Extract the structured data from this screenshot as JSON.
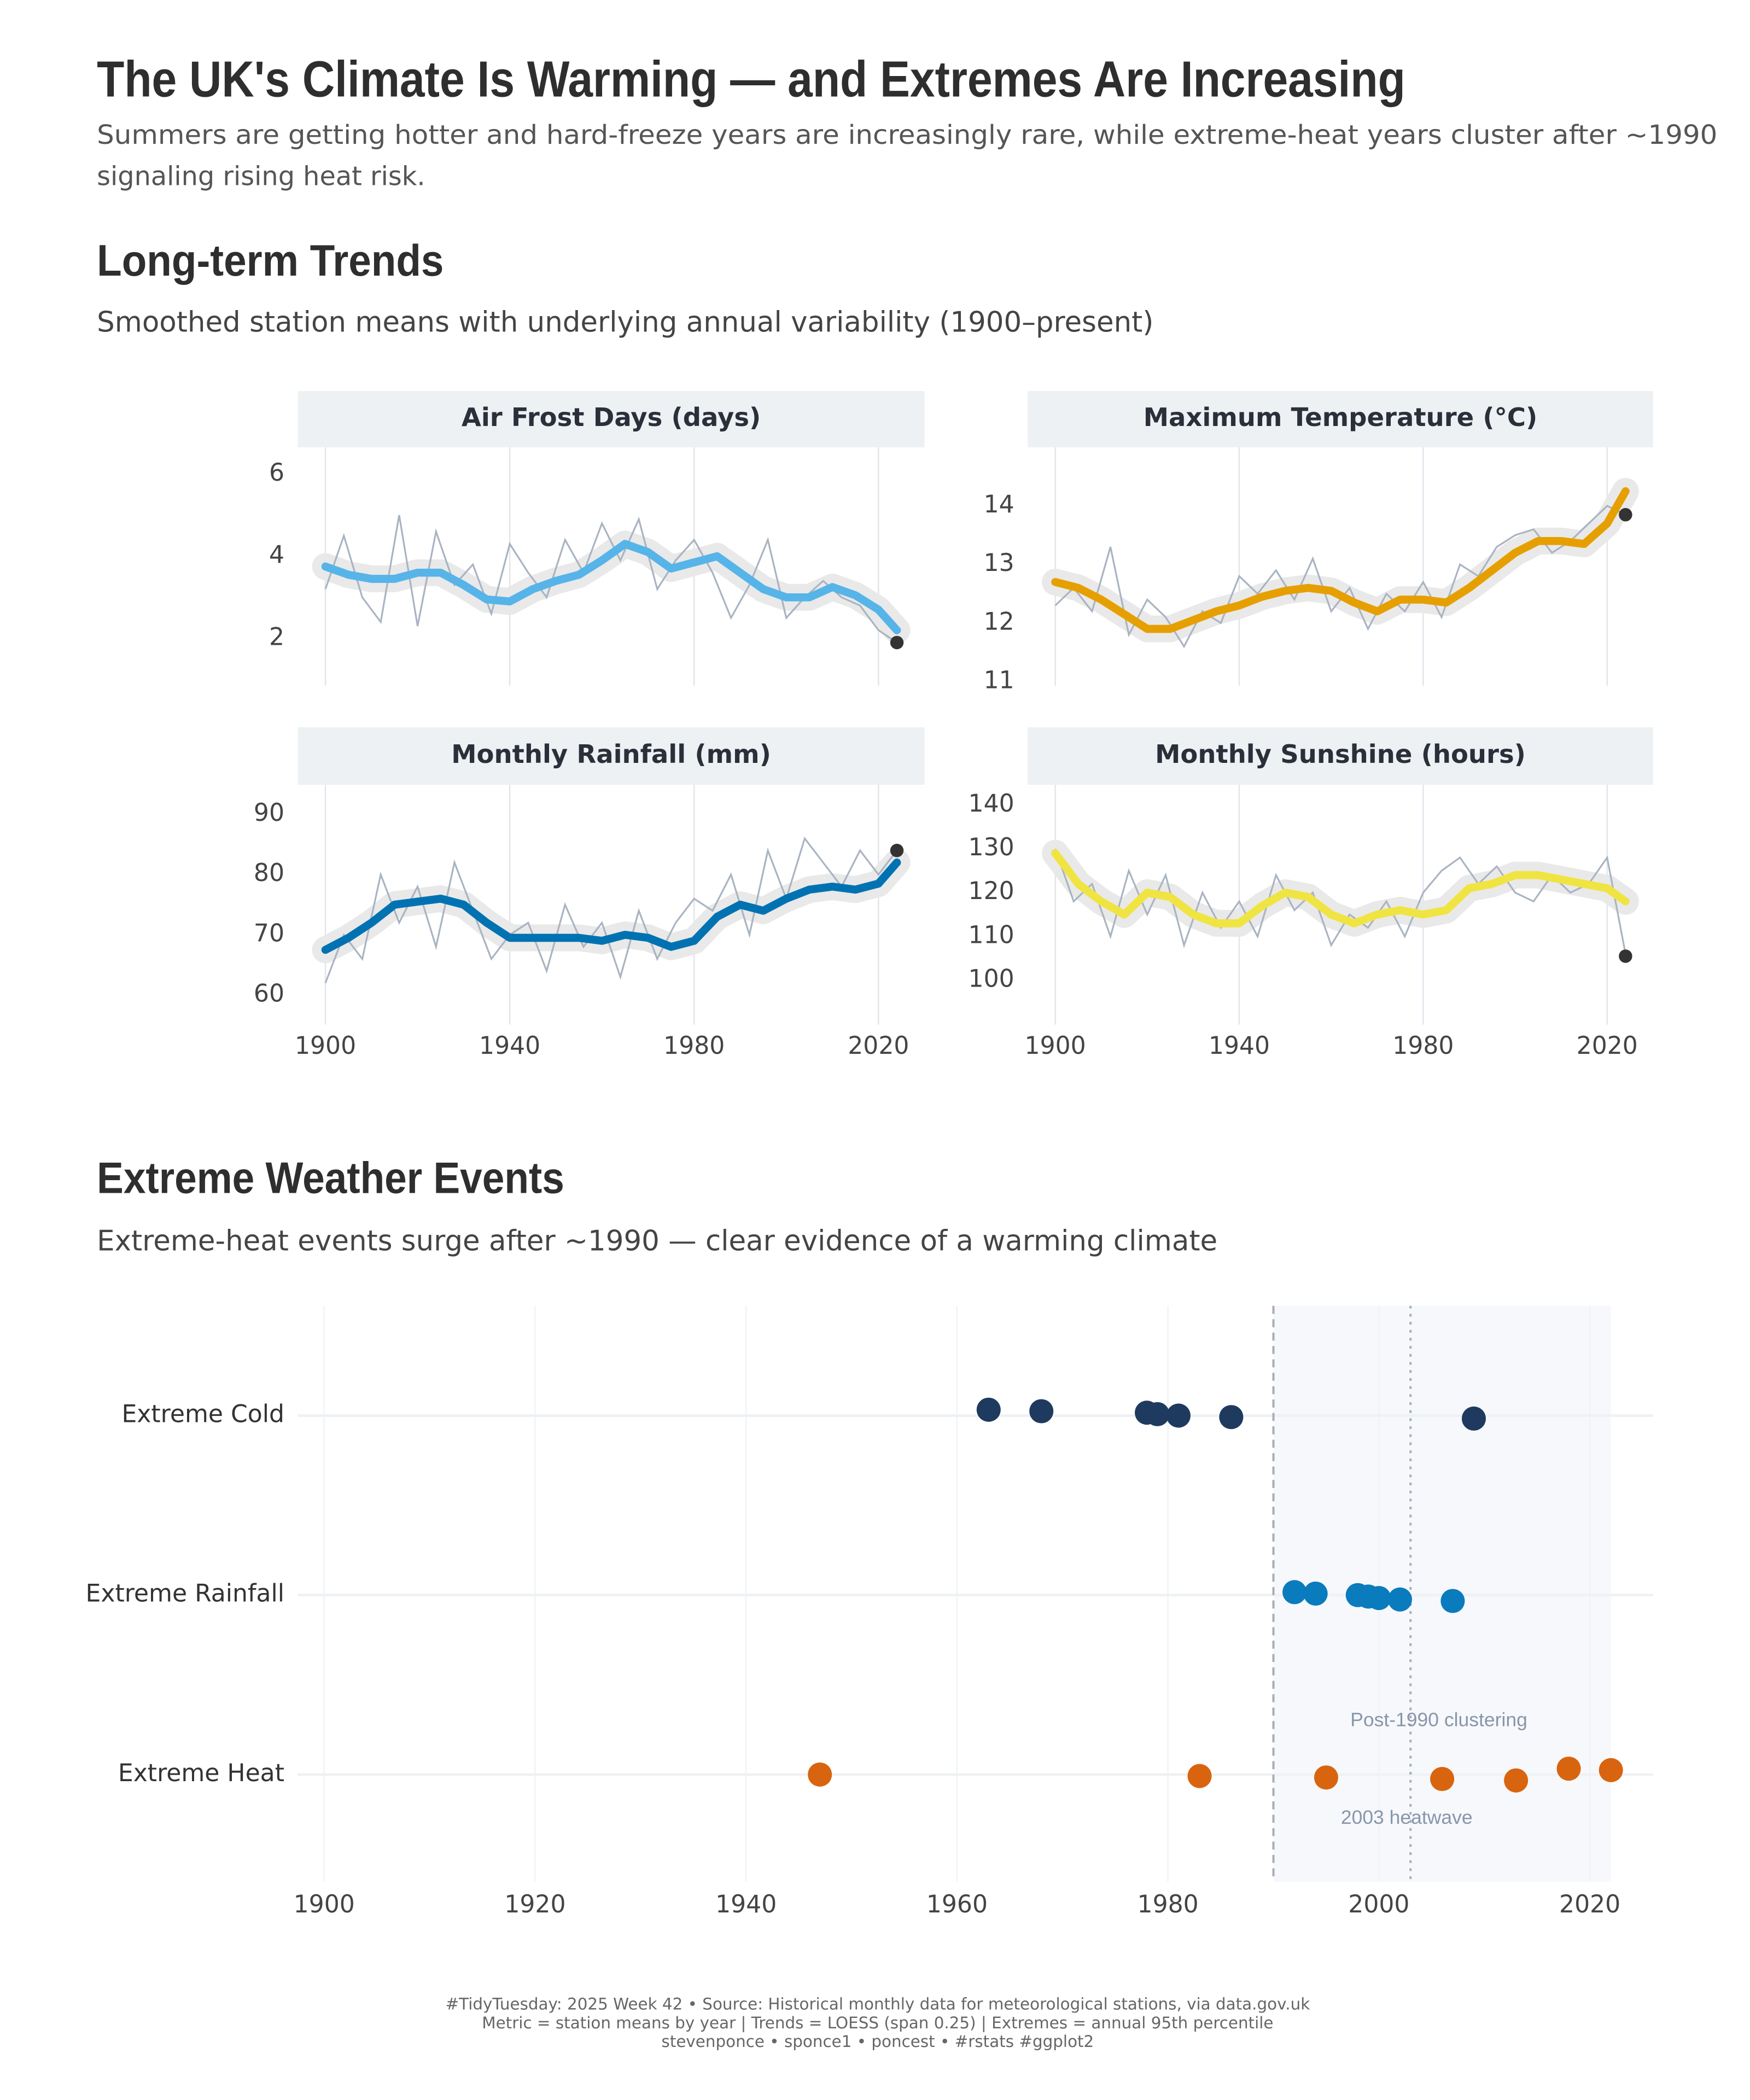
{
  "title": "The UK's Climate Is Warming — and Extremes Are Increasing",
  "subtitle": [
    "Summers are getting hotter and hard-freeze years are increasingly rare, while extreme-heat years cluster after ~1990",
    "signaling rising heat risk."
  ],
  "sections": [
    {
      "heading": "Long-term Trends",
      "subheading": "Smoothed station means with underlying annual variability (1900–present)"
    },
    {
      "heading": "Extreme Weather Events",
      "subheading": "Extreme-heat events surge after ~1990 — clear evidence of a warming climate"
    }
  ],
  "chart_data": [
    {
      "type": "line",
      "title": "Air Frost Days (days)",
      "xlim": [
        1894,
        2030
      ],
      "xticks": [
        1900,
        1940,
        1980,
        2020
      ],
      "show_x_labels": false,
      "ylim": [
        0.85,
        6.65
      ],
      "yticks": [
        2,
        4,
        6
      ],
      "raw": {
        "color": "#a9b4c2",
        "x": [
          1900,
          1904,
          1908,
          1912,
          1916,
          1920,
          1924,
          1928,
          1932,
          1936,
          1940,
          1944,
          1948,
          1952,
          1956,
          1960,
          1964,
          1968,
          1972,
          1976,
          1980,
          1984,
          1988,
          1992,
          1996,
          2000,
          2004,
          2008,
          2012,
          2016,
          2020,
          2024
        ],
        "values": [
          3.2,
          4.5,
          3.0,
          2.4,
          5.0,
          2.3,
          4.6,
          3.3,
          3.8,
          2.6,
          4.3,
          3.6,
          3.0,
          4.4,
          3.6,
          4.8,
          3.9,
          4.9,
          3.2,
          3.9,
          4.4,
          3.6,
          2.5,
          3.3,
          4.4,
          2.5,
          3.0,
          3.4,
          3.0,
          2.8,
          2.2,
          1.9
        ]
      },
      "trend": {
        "color": "#56b4e9",
        "x": [
          1900,
          1905,
          1910,
          1915,
          1920,
          1925,
          1930,
          1935,
          1940,
          1945,
          1950,
          1955,
          1960,
          1965,
          1970,
          1975,
          1980,
          1985,
          1990,
          1995,
          2000,
          2005,
          2010,
          2015,
          2020,
          2024
        ],
        "values": [
          3.75,
          3.55,
          3.45,
          3.45,
          3.6,
          3.6,
          3.3,
          2.95,
          2.9,
          3.2,
          3.4,
          3.55,
          3.9,
          4.3,
          4.1,
          3.7,
          3.85,
          4.0,
          3.6,
          3.2,
          3.0,
          3.0,
          3.25,
          3.05,
          2.7,
          2.2
        ]
      },
      "latest": {
        "x": 2024,
        "value": 1.9
      }
    },
    {
      "type": "line",
      "title": "Maximum Temperature (°C)",
      "xlim": [
        1894,
        2030
      ],
      "xticks": [
        1900,
        1940,
        1980,
        2020
      ],
      "show_x_labels": false,
      "ylim": [
        10.93,
        15.0
      ],
      "yticks": [
        11,
        12,
        13,
        14
      ],
      "raw": {
        "color": "#a9b4c2",
        "x": [
          1900,
          1904,
          1908,
          1912,
          1916,
          1920,
          1924,
          1928,
          1932,
          1936,
          1940,
          1944,
          1948,
          1952,
          1956,
          1960,
          1964,
          1968,
          1972,
          1976,
          1980,
          1984,
          1988,
          1992,
          1996,
          2000,
          2004,
          2008,
          2012,
          2016,
          2020,
          2024
        ],
        "values": [
          12.3,
          12.6,
          12.2,
          13.3,
          11.8,
          12.4,
          12.1,
          11.6,
          12.2,
          12.0,
          12.8,
          12.5,
          12.9,
          12.4,
          13.1,
          12.2,
          12.6,
          11.9,
          12.5,
          12.2,
          12.7,
          12.1,
          13.0,
          12.8,
          13.3,
          13.5,
          13.6,
          13.2,
          13.4,
          13.7,
          14.0,
          13.85
        ]
      },
      "trend": {
        "color": "#e69f00",
        "x": [
          1900,
          1905,
          1910,
          1915,
          1920,
          1925,
          1930,
          1935,
          1940,
          1945,
          1950,
          1955,
          1960,
          1965,
          1970,
          1975,
          1980,
          1985,
          1990,
          1995,
          2000,
          2005,
          2010,
          2015,
          2020,
          2024
        ],
        "values": [
          12.7,
          12.6,
          12.4,
          12.15,
          11.9,
          11.9,
          12.05,
          12.2,
          12.3,
          12.45,
          12.55,
          12.6,
          12.55,
          12.35,
          12.2,
          12.4,
          12.4,
          12.35,
          12.6,
          12.9,
          13.2,
          13.4,
          13.4,
          13.35,
          13.7,
          14.25
        ]
      },
      "latest": {
        "x": 2024,
        "value": 13.85
      }
    },
    {
      "type": "line",
      "title": "Monthly Rainfall (mm)",
      "xlim": [
        1894,
        2030
      ],
      "xticks": [
        1900,
        1940,
        1980,
        2020
      ],
      "show_x_labels": true,
      "ylim": [
        55.1,
        94.9
      ],
      "yticks": [
        60,
        70,
        80,
        90
      ],
      "raw": {
        "color": "#a9b4c2",
        "x": [
          1900,
          1904,
          1908,
          1912,
          1916,
          1920,
          1924,
          1928,
          1932,
          1936,
          1940,
          1944,
          1948,
          1952,
          1956,
          1960,
          1964,
          1968,
          1972,
          1976,
          1980,
          1984,
          1988,
          1992,
          1996,
          2000,
          2004,
          2008,
          2012,
          2016,
          2020,
          2024
        ],
        "values": [
          62,
          70,
          66,
          80,
          72,
          78,
          68,
          82,
          74,
          66,
          70,
          72,
          64,
          75,
          68,
          72,
          63,
          74,
          66,
          72,
          76,
          74,
          80,
          70,
          84,
          76,
          86,
          82,
          78,
          84,
          80,
          84
        ]
      },
      "trend": {
        "color": "#0072b2",
        "x": [
          1900,
          1905,
          1910,
          1915,
          1920,
          1925,
          1930,
          1935,
          1940,
          1945,
          1950,
          1955,
          1960,
          1965,
          1970,
          1975,
          1980,
          1985,
          1990,
          1995,
          2000,
          2005,
          2010,
          2015,
          2020,
          2024
        ],
        "values": [
          67.5,
          69.5,
          72,
          75,
          75.5,
          76,
          75,
          72,
          69.5,
          69.5,
          69.5,
          69.5,
          69,
          70,
          69.5,
          68,
          69,
          73,
          75,
          74,
          76,
          77.5,
          78,
          77.5,
          78.5,
          82
        ]
      },
      "latest": {
        "x": 2024,
        "value": 84
      }
    },
    {
      "type": "line",
      "title": "Monthly Sunshine (hours)",
      "xlim": [
        1894,
        2030
      ],
      "xticks": [
        1900,
        1940,
        1980,
        2020
      ],
      "show_x_labels": true,
      "ylim": [
        89.9,
        144.6
      ],
      "yticks": [
        100,
        110,
        120,
        130,
        140
      ],
      "raw": {
        "color": "#a9b4c2",
        "x": [
          1900,
          1904,
          1908,
          1912,
          1916,
          1920,
          1924,
          1928,
          1932,
          1936,
          1940,
          1944,
          1948,
          1952,
          1956,
          1960,
          1964,
          1968,
          1972,
          1976,
          1980,
          1984,
          1988,
          1992,
          1996,
          2000,
          2004,
          2008,
          2012,
          2016,
          2020,
          2024
        ],
        "values": [
          130,
          118,
          122,
          110,
          125,
          115,
          124,
          108,
          120,
          112,
          118,
          110,
          124,
          116,
          120,
          108,
          115,
          112,
          118,
          110,
          120,
          125,
          128,
          122,
          126,
          120,
          118,
          124,
          120,
          122,
          128,
          106
        ]
      },
      "trend": {
        "color": "#f0e442",
        "x": [
          1900,
          1905,
          1910,
          1915,
          1920,
          1925,
          1930,
          1935,
          1940,
          1945,
          1950,
          1955,
          1960,
          1965,
          1970,
          1975,
          1980,
          1985,
          1990,
          1995,
          2000,
          2005,
          2010,
          2015,
          2020,
          2024
        ],
        "values": [
          129,
          122,
          118,
          115,
          120,
          119,
          115,
          113,
          113,
          117,
          120,
          119,
          115,
          113,
          115,
          116,
          115,
          116,
          121,
          122,
          124,
          124,
          123,
          122,
          121,
          118
        ]
      },
      "latest": {
        "x": 2024,
        "value": 105.5
      }
    },
    {
      "type": "strip",
      "xlim": [
        1897.5,
        2026
      ],
      "xticks": [
        1900,
        1920,
        1940,
        1960,
        1980,
        2000,
        2020
      ],
      "shade": [
        1990,
        2022
      ],
      "vlines": [
        {
          "x": 1990,
          "style": "dashed"
        },
        {
          "x": 2003,
          "style": "dotted"
        }
      ],
      "annotations": [
        "Post-1990 clustering",
        "2003 heatwave"
      ],
      "series": [
        {
          "name": "Extreme Cold",
          "color": "#1f3a5f",
          "x": [
            1963,
            1968,
            1978,
            1979,
            1981,
            1986,
            2009
          ]
        },
        {
          "name": "Extreme Rainfall",
          "color": "#0a7bbd",
          "x": [
            1992,
            1994,
            1998,
            1999,
            2000,
            2002,
            2007
          ]
        },
        {
          "name": "Extreme Heat",
          "color": "#d9640f",
          "x": [
            1947,
            1983,
            1995,
            2006,
            2013,
            2018,
            2022
          ]
        }
      ]
    }
  ],
  "caption": [
    "#TidyTuesday: 2025 Week 42 • Source: Historical monthly data for meteorological stations, via data.gov.uk",
    "Metric = station means by year | Trends = LOESS (span 0.25) | Extremes = annual 95th percentile",
    "stevenponce • sponce1 • poncest • #rstats #ggplot2"
  ]
}
